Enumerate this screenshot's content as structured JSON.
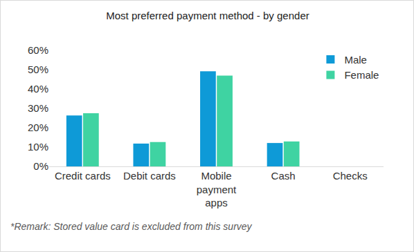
{
  "chart_data": {
    "type": "bar",
    "title": "Most preferred payment method - by gender",
    "categories": [
      "Credit cards",
      "Debit cards",
      "Mobile payment apps",
      "Cash",
      "Checks"
    ],
    "series": [
      {
        "name": "Male",
        "color": "#0e9ad7",
        "values": [
          26.3,
          11.8,
          49.2,
          12.1,
          0
        ]
      },
      {
        "name": "Female",
        "color": "#3fd3a2",
        "values": [
          27.5,
          12.6,
          47.0,
          12.9,
          0
        ]
      }
    ],
    "ylim": [
      0,
      60
    ],
    "yticks": [
      {
        "value": 0,
        "label": "0%"
      },
      {
        "value": 10,
        "label": "10%"
      },
      {
        "value": 20,
        "label": "20%"
      },
      {
        "value": 30,
        "label": "30%"
      },
      {
        "value": 40,
        "label": "40%"
      },
      {
        "value": 50,
        "label": "50%"
      },
      {
        "value": 60,
        "label": "60%"
      }
    ],
    "grid": false,
    "legend": "top right",
    "annotations": [
      "*Remark: Stored value card is excluded from this survey"
    ]
  }
}
